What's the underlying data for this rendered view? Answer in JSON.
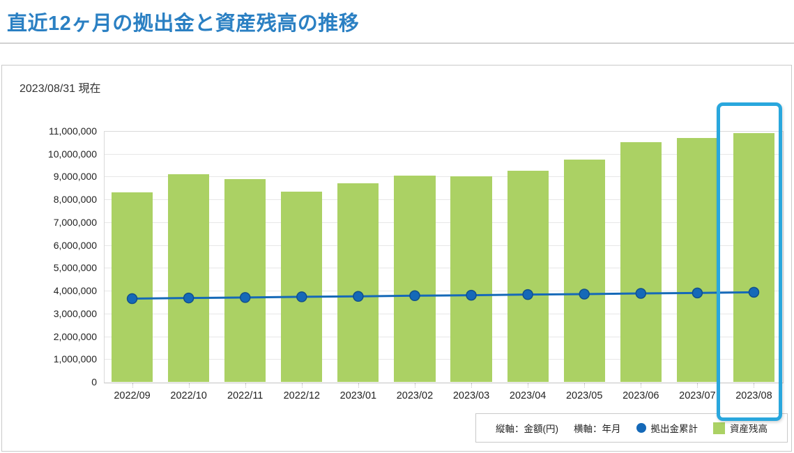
{
  "page": {
    "title": "直近12ヶ月の拠出金と資産残高の推移",
    "as_of_date": "2023/08/31 現在"
  },
  "legend": {
    "y_axis_note": "縦軸：金額(円)",
    "x_axis_note": "横軸：年月",
    "line_label": "拠出金累計",
    "bar_label": "資産残高"
  },
  "colors": {
    "title_blue": "#2b80c3",
    "bar_green": "#abd164",
    "line_blue": "#1569b8",
    "line_marker_edge": "#11508c",
    "highlight_cyan": "#29a7dd",
    "gridline_gray": "#e7e7e7"
  },
  "chart_data": {
    "type": "bar",
    "subtype": "combo-bar-line",
    "categories": [
      "2022/09",
      "2022/10",
      "2022/11",
      "2022/12",
      "2023/01",
      "2023/02",
      "2023/03",
      "2023/04",
      "2023/05",
      "2023/06",
      "2023/07",
      "2023/08"
    ],
    "series": [
      {
        "name": "資産残高",
        "type": "bar",
        "color": "#abd164",
        "values": [
          8300000,
          9100000,
          8900000,
          8350000,
          8700000,
          9050000,
          9000000,
          9250000,
          9750000,
          10500000,
          10700000,
          10900000
        ]
      },
      {
        "name": "拠出金累計",
        "type": "line",
        "color": "#1569b8",
        "values": [
          3650000,
          3680000,
          3700000,
          3730000,
          3750000,
          3780000,
          3800000,
          3830000,
          3850000,
          3880000,
          3900000,
          3930000
        ]
      }
    ],
    "title": "直近12ヶ月の拠出金と資産残高の推移",
    "xlabel": "年月",
    "ylabel": "金額(円)",
    "ylim": [
      0,
      11000000
    ],
    "ytick_step": 1000000,
    "grid": true,
    "legend_position": "bottom-right",
    "highlighted_category": "2023/08"
  }
}
